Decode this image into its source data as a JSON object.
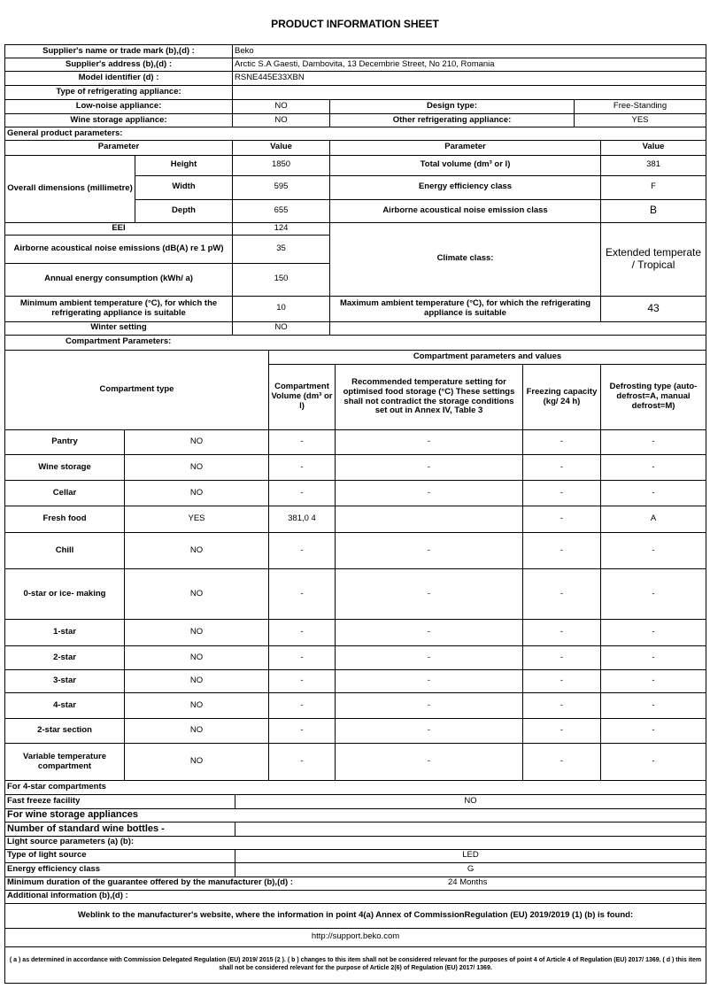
{
  "title": "PRODUCT INFORMATION SHEET",
  "supplier": {
    "name_label": "Supplier's name or trade mark (b),(d) :",
    "name": "Beko",
    "address_label": "Supplier's address (b),(d) :",
    "address": "Arctic S.A  Gaesti, Dambovita, 13 Decembrie Street, No 210, Romania",
    "model_label": "Model identifier (d) :",
    "model": "RSNE445E33XBN"
  },
  "type": {
    "label": "Type of refrigerating appliance:",
    "low_noise_label": "Low-noise appliance:",
    "low_noise": "NO",
    "design_label": "Design type:",
    "design": "Free-Standing",
    "wine_label": "Wine storage appliance:",
    "wine": "NO",
    "other_label": "Other refrigerating appliance:",
    "other": "YES"
  },
  "general": {
    "label": "General product parameters:",
    "h_param": "Parameter",
    "h_value": "Value",
    "dims_label": "Overall dimensions (millimetre)",
    "height_label": "Height",
    "height": "1850",
    "width_label": "Width",
    "width": "595",
    "depth_label": "Depth",
    "depth": "655",
    "volume_label": "Total volume (dm³ or l)",
    "volume": "381",
    "eec_label": "Energy efficiency class",
    "eec": "F",
    "noise_class_label": "Airborne acoustical noise emission class",
    "noise_class": "B",
    "eei_label": "EEI",
    "eei": "124",
    "noise_label": "Airborne acoustical noise emissions (dB(A) re 1 pW)",
    "noise": "35",
    "annual_label": "Annual energy consumption (kWh/ a)",
    "annual": "150",
    "climate_label": "Climate class:",
    "climate": "Extended temperate / Tropical",
    "min_temp_label": "Minimum ambient temperature (°C), for which the refrigerating appliance is suitable",
    "min_temp": "10",
    "max_temp_label": "Maximum ambient temperature (°C), for which the refrigerating appliance is suitable",
    "max_temp": "43",
    "winter_label": "Winter setting",
    "winter": "NO"
  },
  "compartments": {
    "label": "Compartment Parameters:",
    "group_header": "Compartment parameters and values",
    "type_header": "Compartment type",
    "headers": [
      "Compartment Volume (dm³ or l)",
      "Recommended temperature setting for optimised food storage (°C) These settings shall not contradict the storage conditions set out in Annex IV, Table 3",
      "Freezing capacity (kg/ 24 h)",
      "Defrosting type (auto-defrost=A, manual defrost=M)"
    ],
    "rows": [
      {
        "name": "Pantry",
        "present": "NO",
        "volume": "-",
        "temp": "-",
        "freezing": "-",
        "defrost": "-"
      },
      {
        "name": "Wine storage",
        "present": "NO",
        "volume": "-",
        "temp": "-",
        "freezing": "-",
        "defrost": "-"
      },
      {
        "name": "Cellar",
        "present": "NO",
        "volume": "-",
        "temp": "-",
        "freezing": "-",
        "defrost": "-"
      },
      {
        "name": "Fresh food",
        "present": "YES",
        "volume": "381,0 4",
        "temp": "",
        "freezing": "-",
        "defrost": "A"
      },
      {
        "name": "Chill",
        "present": "NO",
        "volume": "-",
        "temp": "-",
        "freezing": "-",
        "defrost": "-"
      },
      {
        "name": "0-star or ice- making",
        "present": "NO",
        "volume": "-",
        "temp": "-",
        "freezing": "-",
        "defrost": "-"
      },
      {
        "name": "1-star",
        "present": "NO",
        "volume": "-",
        "temp": "-",
        "freezing": "-",
        "defrost": "-"
      },
      {
        "name": "2-star",
        "present": "NO",
        "volume": "-",
        "temp": "-",
        "freezing": "-",
        "defrost": "-"
      },
      {
        "name": "3-star",
        "present": "NO",
        "volume": "-",
        "temp": "-",
        "freezing": "-",
        "defrost": "-"
      },
      {
        "name": "4-star",
        "present": "NO",
        "volume": "-",
        "temp": "-",
        "freezing": "-",
        "defrost": "-"
      },
      {
        "name": "2-star section",
        "present": "NO",
        "volume": "-",
        "temp": "-",
        "freezing": "-",
        "defrost": "-"
      },
      {
        "name": "Variable temperature compartment",
        "present": "NO",
        "volume": "-",
        "temp": "-",
        "freezing": "-",
        "defrost": "-"
      }
    ]
  },
  "bottom": {
    "four_star_label": "For 4-star compartments",
    "fast_freeze_label": "Fast freeze facility",
    "fast_freeze": "NO",
    "wine_label": "For wine storage appliances",
    "bottles_label": "Number of standard wine bottles -",
    "bottles": "",
    "light_label": "Light source parameters (a) (b):",
    "light_type_label": "Type of light source",
    "light_type": "LED",
    "light_eec_label": "Energy efficiency class",
    "light_eec": "G",
    "guarantee_label": "Minimum duration of the guarantee offered by the manufacturer (b),(d) :",
    "guarantee": "24 Months",
    "additional_label": "Additional information (b),(d) :",
    "weblink_label": "Weblink to the manufacturer's website, where the information in point 4(a) Annex of CommissionRegulation (EU) 2019/2019 (1) (b) is found:",
    "url": "http://support.beko.com",
    "footnote": "( a ) as determined in accordance with Commission Delegated Regulation (EU) 2019/ 2015 (2 ). ( b ) changes to this item shall not be considered relevant for the purposes of point 4 of Article 4 of Regulation (EU) 2017/ 1369. ( d ) this item shall not be considered relevant for the purpose of Article 2(6) of Regulation (EU) 2017/ 1369."
  }
}
